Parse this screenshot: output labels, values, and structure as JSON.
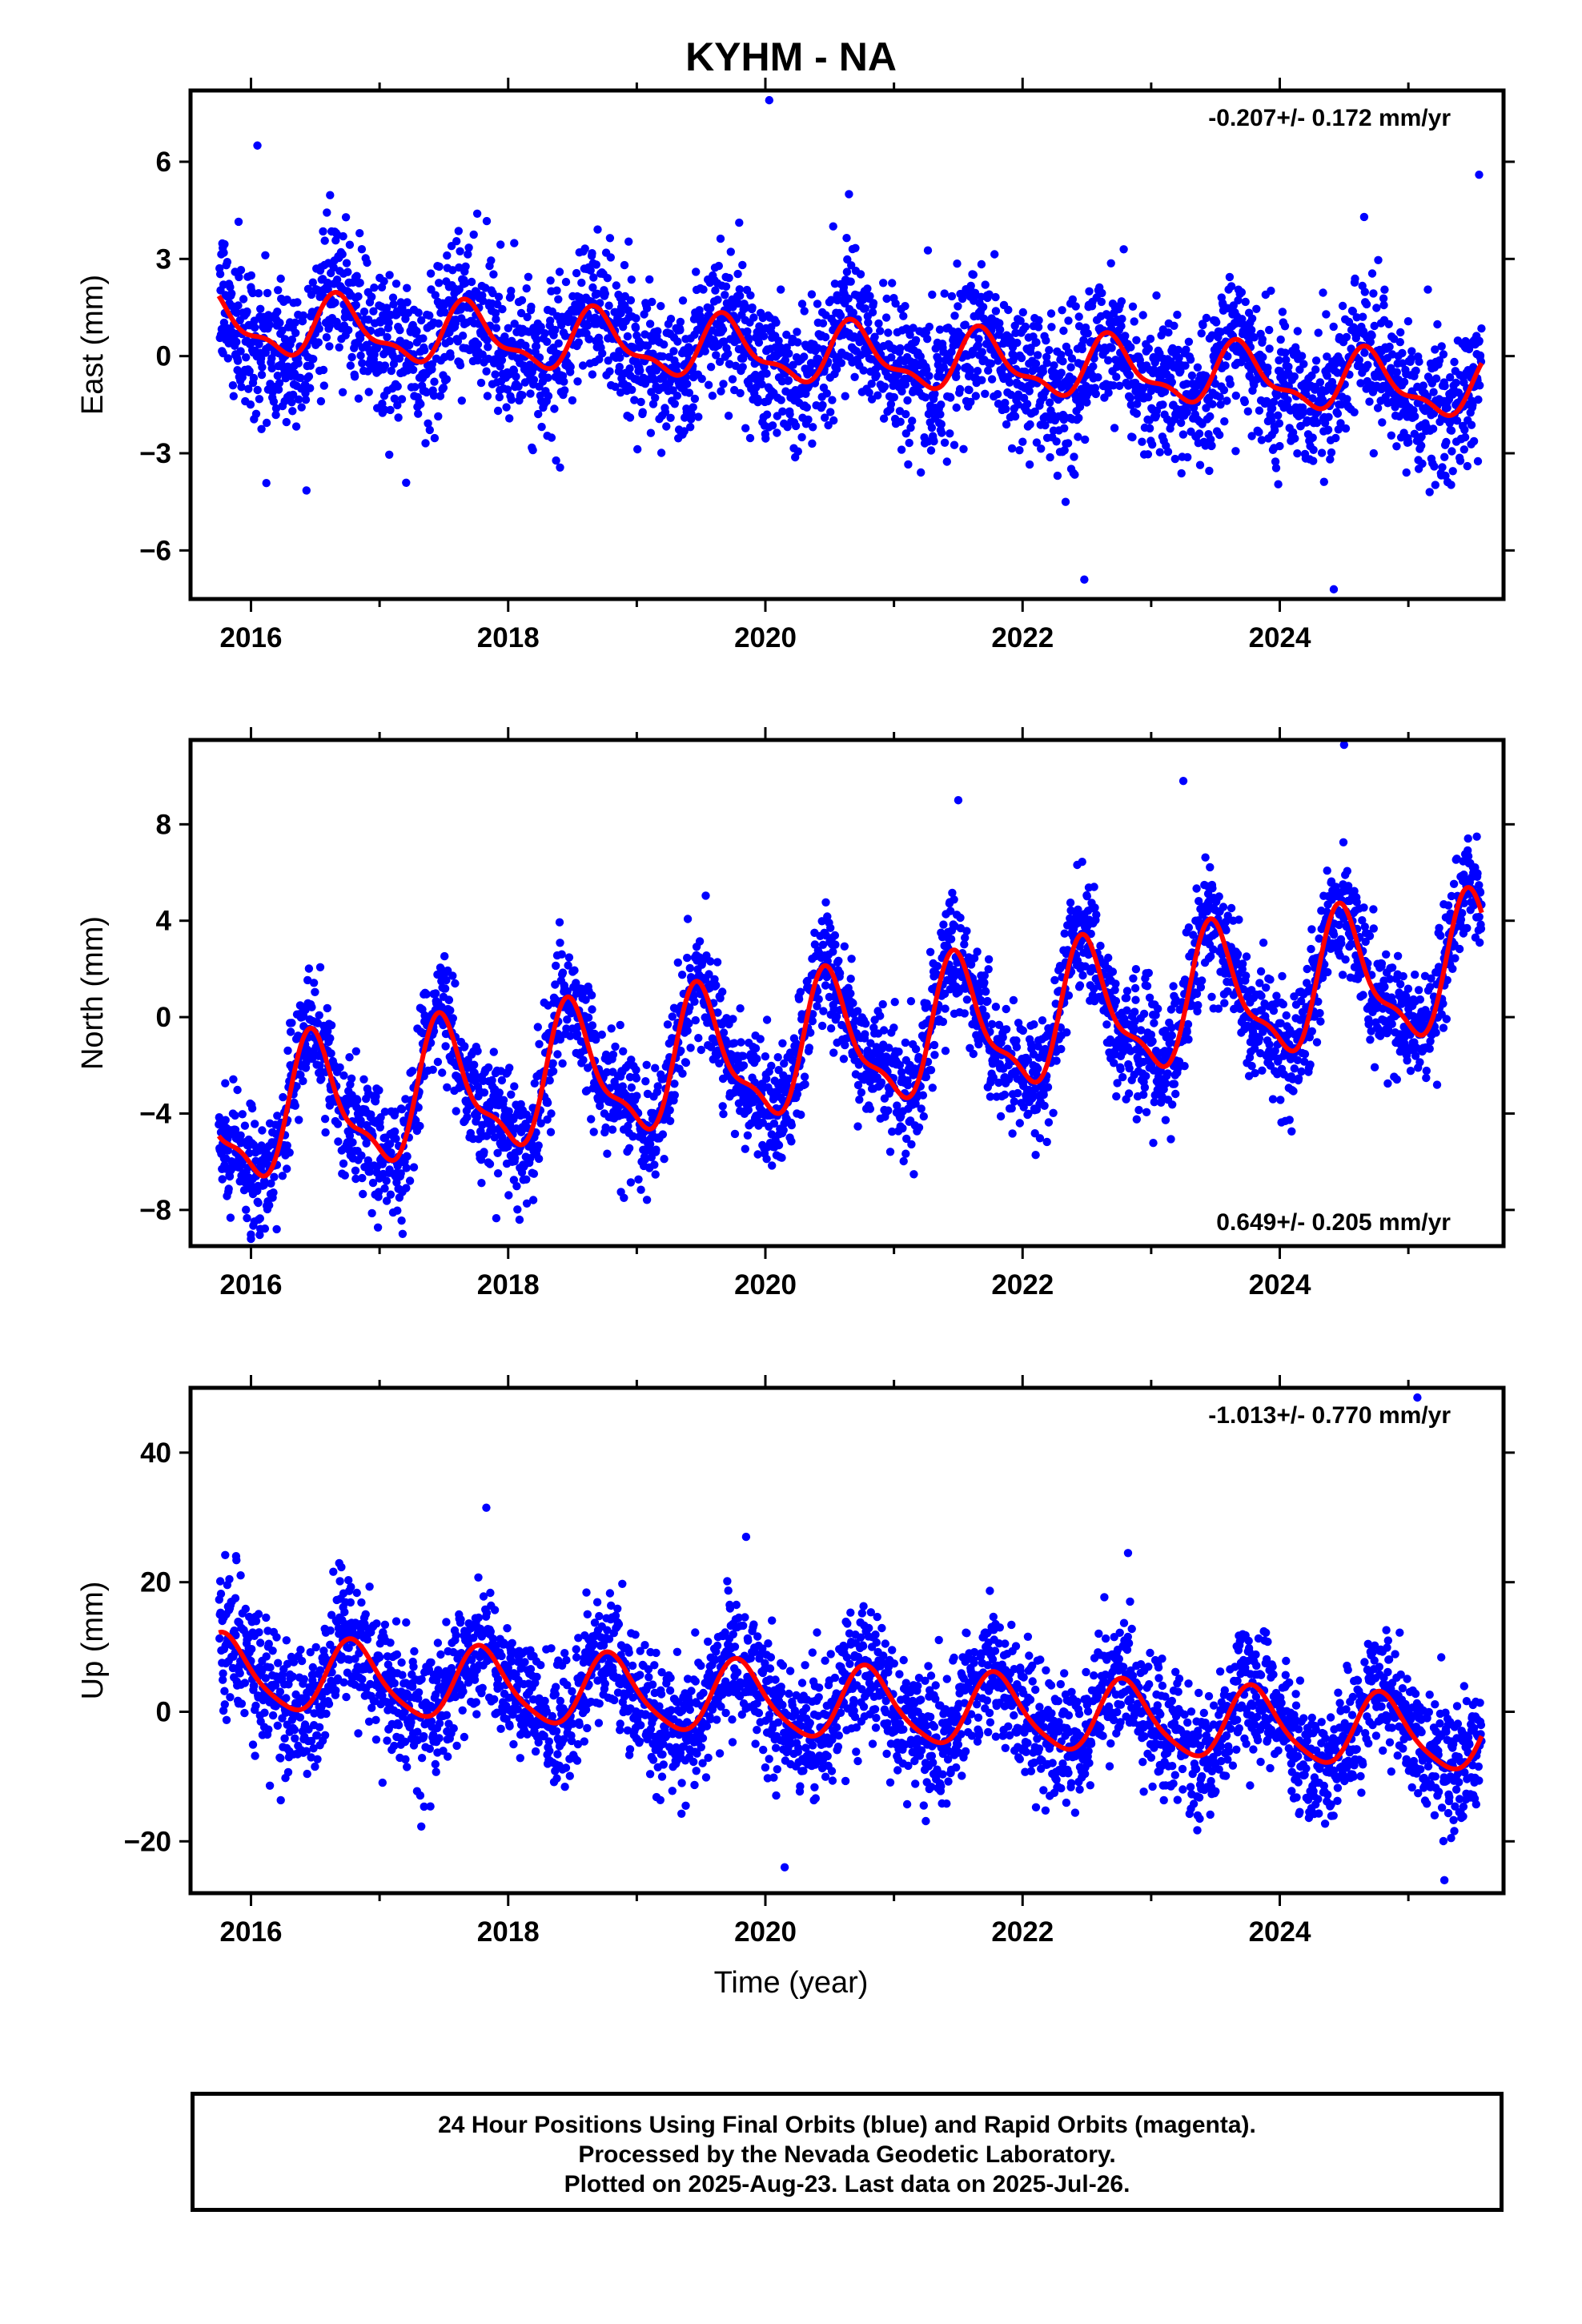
{
  "title": "KYHM - NA",
  "x_axis_label": "Time (year)",
  "footer": {
    "line1": "24 Hour Positions Using Final Orbits (blue) and Rapid Orbits (magenta).",
    "line2": "Processed by the Nevada Geodetic Laboratory.",
    "line3": "Plotted on 2025-Aug-23. Last data on 2025-Jul-26."
  },
  "colors": {
    "points": "#0000ff",
    "model": "#ff0000",
    "frame": "#000000"
  },
  "chart_data": [
    {
      "type": "scatter",
      "component": "east",
      "ylabel": "East (mm)",
      "rate_label": "-0.207+/- 0.172 mm/yr",
      "rate_position": "top-right",
      "xlim": [
        2015.53,
        2025.74
      ],
      "ylim": [
        -7.5,
        8.2
      ],
      "yticks": [
        -6,
        -3,
        0,
        3,
        6
      ],
      "ytick_labels": [
        "−6",
        "−3",
        "0",
        "3",
        "6"
      ],
      "xticks": [
        2016,
        2018,
        2020,
        2022,
        2024
      ],
      "xtick_labels": [
        "2016",
        "2018",
        "2020",
        "2022",
        "2024"
      ],
      "trend": {
        "start": 2015.75,
        "end": 2025.57,
        "offset_at_start": 1.0,
        "rate_mm_per_yr": -0.207
      },
      "seasonal": {
        "annual_amplitude": 0.85,
        "annual_phase_peak": 0.7,
        "semiannual_amplitude": 0.35
      },
      "scatter_sigma": 1.1,
      "outliers": [
        [
          2020.03,
          7.9
        ],
        [
          2016.05,
          6.5
        ],
        [
          2025.55,
          5.6
        ],
        [
          2020.65,
          5.0
        ],
        [
          2022.48,
          -6.9
        ],
        [
          2024.42,
          -7.2
        ]
      ]
    },
    {
      "type": "scatter",
      "component": "north",
      "ylabel": "North (mm)",
      "rate_label": "0.649+/- 0.205 mm/yr",
      "rate_position": "bottom-right",
      "xlim": [
        2015.53,
        2025.74
      ],
      "ylim": [
        -9.5,
        11.5
      ],
      "yticks": [
        -8,
        -4,
        0,
        4,
        8
      ],
      "ytick_labels": [
        "−8",
        "−4",
        "0",
        "4",
        "8"
      ],
      "xticks": [
        2016,
        2018,
        2020,
        2022,
        2024
      ],
      "xtick_labels": [
        "2016",
        "2018",
        "2020",
        "2022",
        "2024"
      ],
      "trend": {
        "start": 2015.75,
        "end": 2025.57,
        "offset_at_start": -4.3,
        "rate_mm_per_yr": 0.649
      },
      "seasonal": {
        "annual_amplitude": 2.6,
        "annual_phase_peak": 0.5,
        "semiannual_amplitude": 0.9
      },
      "scatter_sigma": 1.2,
      "outliers": [
        [
          2024.5,
          11.3
        ],
        [
          2023.25,
          9.8
        ],
        [
          2021.5,
          9.0
        ],
        [
          2016.0,
          -9.2
        ],
        [
          2016.2,
          -8.8
        ],
        [
          2018.9,
          -7.5
        ]
      ]
    },
    {
      "type": "scatter",
      "component": "up",
      "ylabel": "Up (mm)",
      "rate_label": "-1.013+/- 0.770 mm/yr",
      "rate_position": "top-right",
      "xlim": [
        2015.53,
        2025.74
      ],
      "ylim": [
        -28,
        50
      ],
      "yticks": [
        -20,
        0,
        20,
        40
      ],
      "ytick_labels": [
        "−20",
        "0",
        "20",
        "40"
      ],
      "xticks": [
        2016,
        2018,
        2020,
        2022,
        2024
      ],
      "xtick_labels": [
        "2016",
        "2018",
        "2020",
        "2022",
        "2024"
      ],
      "trend": {
        "start": 2015.75,
        "end": 2025.57,
        "offset_at_start": 6.0,
        "rate_mm_per_yr": -1.013
      },
      "seasonal": {
        "annual_amplitude": 5.5,
        "annual_phase_peak": 0.8,
        "semiannual_amplitude": 1.0
      },
      "scatter_sigma": 5.0,
      "outliers": [
        [
          2025.07,
          48.5
        ],
        [
          2017.83,
          31.5
        ],
        [
          2019.85,
          27.0
        ],
        [
          2022.82,
          24.5
        ],
        [
          2020.15,
          -24.0
        ],
        [
          2025.28,
          -26.0
        ]
      ]
    }
  ]
}
